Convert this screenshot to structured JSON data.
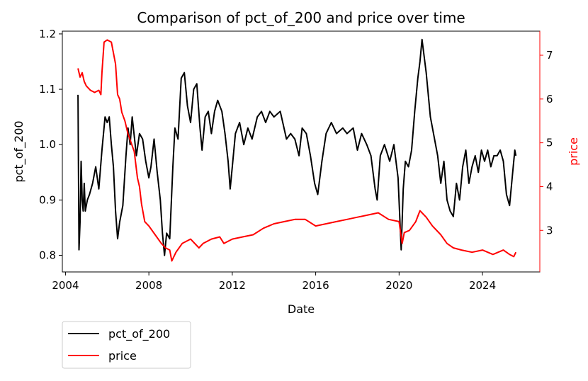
{
  "chart_data": {
    "type": "line",
    "title": "Comparison of pct_of_200 and price over time",
    "xlabel": "Date",
    "ylabel_left": "pct_of_200",
    "ylabel_right": "price",
    "x_ticks": [
      "2004",
      "2008",
      "2012",
      "2016",
      "2020",
      "2024"
    ],
    "y_left_ticks": [
      "0.8",
      "0.9",
      "1.0",
      "1.1",
      "1.2"
    ],
    "y_right_ticks": [
      "3",
      "4",
      "5",
      "6",
      "7"
    ],
    "ylim_left": [
      0.77,
      1.205
    ],
    "ylim_right": [
      2.05,
      7.55
    ],
    "xlim": [
      2003.85,
      2026.75
    ],
    "legend_position": "below-left",
    "grid": false,
    "colors": {
      "pct_of_200": "#000000",
      "price": "#ff0000"
    },
    "series": [
      {
        "name": "pct_of_200",
        "axis": "left",
        "x": [
          2004.6,
          2004.65,
          2004.7,
          2004.75,
          2004.8,
          2004.85,
          2004.9,
          2004.95,
          2005.05,
          2005.15,
          2005.3,
          2005.45,
          2005.6,
          2005.75,
          2005.9,
          2006.0,
          2006.1,
          2006.2,
          2006.3,
          2006.4,
          2006.5,
          2006.6,
          2006.7,
          2006.75,
          2006.9,
          2007.0,
          2007.1,
          2007.2,
          2007.4,
          2007.55,
          2007.7,
          2007.85,
          2008.0,
          2008.1,
          2008.25,
          2008.4,
          2008.55,
          2008.65,
          2008.75,
          2008.85,
          2009.0,
          2009.15,
          2009.25,
          2009.4,
          2009.55,
          2009.7,
          2009.85,
          2010.0,
          2010.15,
          2010.3,
          2010.45,
          2010.55,
          2010.7,
          2010.85,
          2011.0,
          2011.15,
          2011.3,
          2011.5,
          2011.65,
          2011.8,
          2011.9,
          2012.0,
          2012.15,
          2012.35,
          2012.55,
          2012.75,
          2012.95,
          2013.2,
          2013.4,
          2013.6,
          2013.8,
          2014.0,
          2014.3,
          2014.6,
          2014.8,
          2015.0,
          2015.2,
          2015.35,
          2015.55,
          2015.75,
          2015.95,
          2016.1,
          2016.3,
          2016.5,
          2016.75,
          2017.0,
          2017.3,
          2017.5,
          2017.8,
          2018.0,
          2018.2,
          2018.45,
          2018.65,
          2018.85,
          2018.95,
          2019.1,
          2019.3,
          2019.55,
          2019.75,
          2019.95,
          2020.1,
          2020.2,
          2020.3,
          2020.45,
          2020.6,
          2020.75,
          2020.9,
          2021.0,
          2021.1,
          2021.3,
          2021.5,
          2021.7,
          2021.85,
          2022.0,
          2022.15,
          2022.3,
          2022.45,
          2022.6,
          2022.75,
          2022.9,
          2023.05,
          2023.2,
          2023.35,
          2023.5,
          2023.65,
          2023.8,
          2023.95,
          2024.1,
          2024.25,
          2024.4,
          2024.55,
          2024.7,
          2024.85,
          2025.0,
          2025.15,
          2025.3,
          2025.45,
          2025.55,
          2025.6
        ],
        "y": [
          1.09,
          0.81,
          0.86,
          0.97,
          0.9,
          0.88,
          0.93,
          0.88,
          0.9,
          0.91,
          0.93,
          0.96,
          0.92,
          0.99,
          1.05,
          1.04,
          1.05,
          1.0,
          0.96,
          0.88,
          0.83,
          0.86,
          0.88,
          0.89,
          0.98,
          1.03,
          1.0,
          1.05,
          0.98,
          1.02,
          1.01,
          0.97,
          0.94,
          0.96,
          1.01,
          0.95,
          0.9,
          0.84,
          0.8,
          0.84,
          0.83,
          0.96,
          1.03,
          1.01,
          1.12,
          1.13,
          1.07,
          1.04,
          1.1,
          1.11,
          1.03,
          0.99,
          1.05,
          1.06,
          1.02,
          1.06,
          1.08,
          1.06,
          1.02,
          0.97,
          0.92,
          0.96,
          1.02,
          1.04,
          1.0,
          1.03,
          1.01,
          1.05,
          1.06,
          1.04,
          1.06,
          1.05,
          1.06,
          1.01,
          1.02,
          1.01,
          0.98,
          1.03,
          1.02,
          0.98,
          0.93,
          0.91,
          0.97,
          1.02,
          1.04,
          1.02,
          1.03,
          1.02,
          1.03,
          0.99,
          1.02,
          1.0,
          0.98,
          0.92,
          0.9,
          0.98,
          1.0,
          0.97,
          1.0,
          0.94,
          0.81,
          0.92,
          0.97,
          0.96,
          0.99,
          1.06,
          1.12,
          1.15,
          1.19,
          1.13,
          1.05,
          1.01,
          0.98,
          0.93,
          0.97,
          0.9,
          0.88,
          0.87,
          0.93,
          0.9,
          0.96,
          0.99,
          0.93,
          0.96,
          0.98,
          0.95,
          0.99,
          0.97,
          0.99,
          0.96,
          0.98,
          0.98,
          0.99,
          0.97,
          0.91,
          0.89,
          0.95,
          0.99,
          0.98
        ]
      },
      {
        "name": "price",
        "axis": "right",
        "x": [
          2004.6,
          2004.7,
          2004.8,
          2004.9,
          2005.0,
          2005.2,
          2005.4,
          2005.6,
          2005.7,
          2005.75,
          2005.85,
          2006.0,
          2006.2,
          2006.4,
          2006.5,
          2006.6,
          2006.7,
          2006.85,
          2007.0,
          2007.15,
          2007.3,
          2007.45,
          2007.55,
          2007.65,
          2007.8,
          2008.0,
          2008.3,
          2008.6,
          2008.8,
          2009.0,
          2009.1,
          2009.3,
          2009.6,
          2010.0,
          2010.4,
          2010.6,
          2011.0,
          2011.4,
          2011.6,
          2012.0,
          2012.5,
          2013.0,
          2013.5,
          2014.0,
          2014.5,
          2015.0,
          2015.5,
          2016.0,
          2016.5,
          2017.0,
          2017.5,
          2018.0,
          2018.5,
          2019.0,
          2019.5,
          2020.0,
          2020.15,
          2020.25,
          2020.5,
          2020.8,
          2021.0,
          2021.3,
          2021.6,
          2022.0,
          2022.3,
          2022.6,
          2023.0,
          2023.5,
          2024.0,
          2024.5,
          2025.0,
          2025.3,
          2025.5,
          2025.6
        ],
        "y": [
          6.7,
          6.5,
          6.6,
          6.4,
          6.3,
          6.2,
          6.15,
          6.2,
          6.1,
          6.6,
          7.3,
          7.35,
          7.3,
          6.8,
          6.1,
          6.0,
          5.7,
          5.5,
          5.2,
          5.0,
          4.8,
          4.2,
          4.0,
          3.6,
          3.2,
          3.1,
          2.9,
          2.7,
          2.6,
          2.55,
          2.3,
          2.5,
          2.7,
          2.8,
          2.6,
          2.7,
          2.8,
          2.85,
          2.7,
          2.8,
          2.85,
          2.9,
          3.05,
          3.15,
          3.2,
          3.25,
          3.25,
          3.1,
          3.15,
          3.2,
          3.25,
          3.3,
          3.35,
          3.4,
          3.25,
          3.2,
          2.7,
          2.95,
          3.0,
          3.2,
          3.45,
          3.3,
          3.1,
          2.9,
          2.7,
          2.6,
          2.55,
          2.5,
          2.55,
          2.45,
          2.55,
          2.45,
          2.4,
          2.5
        ]
      }
    ]
  }
}
